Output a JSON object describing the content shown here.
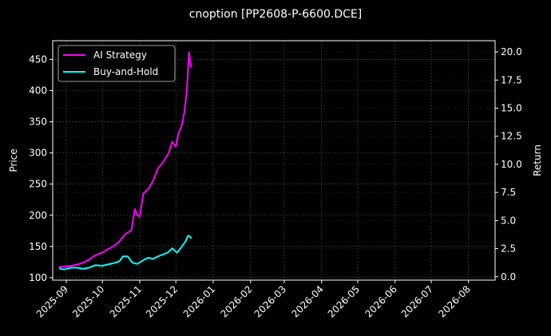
{
  "chart_data": {
    "type": "line",
    "title": "cnoption [PP2608-P-6600.DCE]",
    "xlabel": "",
    "ylabel": "Price",
    "y2label": "Return",
    "ylim": [
      96,
      480
    ],
    "y2lim": [
      -0.3,
      21.0
    ],
    "x_ticks": [
      "2025-09",
      "2025-10",
      "2025-11",
      "2025-12",
      "2026-01",
      "2026-02",
      "2026-03",
      "2026-04",
      "2026-05",
      "2026-06",
      "2026-07",
      "2026-08"
    ],
    "y_ticks": [
      100,
      150,
      200,
      250,
      300,
      350,
      400,
      450
    ],
    "y2_ticks": [
      "0.0",
      "2.5",
      "5.0",
      "7.5",
      "10.0",
      "12.5",
      "15.0",
      "17.5",
      "20.0"
    ],
    "grid": true,
    "legend_position": "upper left",
    "background": "#000000",
    "series": [
      {
        "name": "AI Strategy",
        "color": "#ff00ff",
        "axis": "price",
        "x": [
          "2025-08-26",
          "2025-09-01",
          "2025-09-05",
          "2025-09-10",
          "2025-09-15",
          "2025-09-20",
          "2025-09-25",
          "2025-10-01",
          "2025-10-05",
          "2025-10-10",
          "2025-10-15",
          "2025-10-20",
          "2025-10-25",
          "2025-10-28",
          "2025-10-30",
          "2025-11-01",
          "2025-11-04",
          "2025-11-08",
          "2025-11-12",
          "2025-11-16",
          "2025-11-20",
          "2025-11-25",
          "2025-11-28",
          "2025-12-01",
          "2025-12-03",
          "2025-12-06",
          "2025-12-08",
          "2025-12-10",
          "2025-12-11",
          "2025-12-12",
          "2025-12-13",
          "2025-12-14"
        ],
        "values": [
          117,
          118,
          119,
          121,
          124,
          129,
          136,
          140,
          145,
          150,
          158,
          170,
          176,
          210,
          200,
          198,
          235,
          242,
          255,
          275,
          284,
          300,
          318,
          310,
          330,
          345,
          365,
          398,
          430,
          462,
          445,
          437
        ]
      },
      {
        "name": "Buy-and-Hold",
        "color": "#00ffff",
        "axis": "price",
        "x": [
          "2025-08-26",
          "2025-08-30",
          "2025-09-05",
          "2025-09-10",
          "2025-09-15",
          "2025-09-20",
          "2025-09-25",
          "2025-10-01",
          "2025-10-05",
          "2025-10-10",
          "2025-10-15",
          "2025-10-18",
          "2025-10-22",
          "2025-10-26",
          "2025-10-30",
          "2025-11-04",
          "2025-11-08",
          "2025-11-12",
          "2025-11-16",
          "2025-11-20",
          "2025-11-24",
          "2025-11-28",
          "2025-12-02",
          "2025-12-06",
          "2025-12-09",
          "2025-12-11",
          "2025-12-12",
          "2025-12-14"
        ],
        "values": [
          115,
          113,
          116,
          116,
          114,
          116,
          120,
          119,
          121,
          123,
          126,
          134,
          134,
          124,
          122,
          128,
          132,
          130,
          134,
          137,
          140,
          147,
          140,
          150,
          158,
          167,
          167,
          163
        ]
      }
    ]
  },
  "legend": {
    "items": [
      {
        "label": "AI Strategy",
        "color": "#ff00ff"
      },
      {
        "label": "Buy-and-Hold",
        "color": "#00ffff"
      }
    ]
  }
}
